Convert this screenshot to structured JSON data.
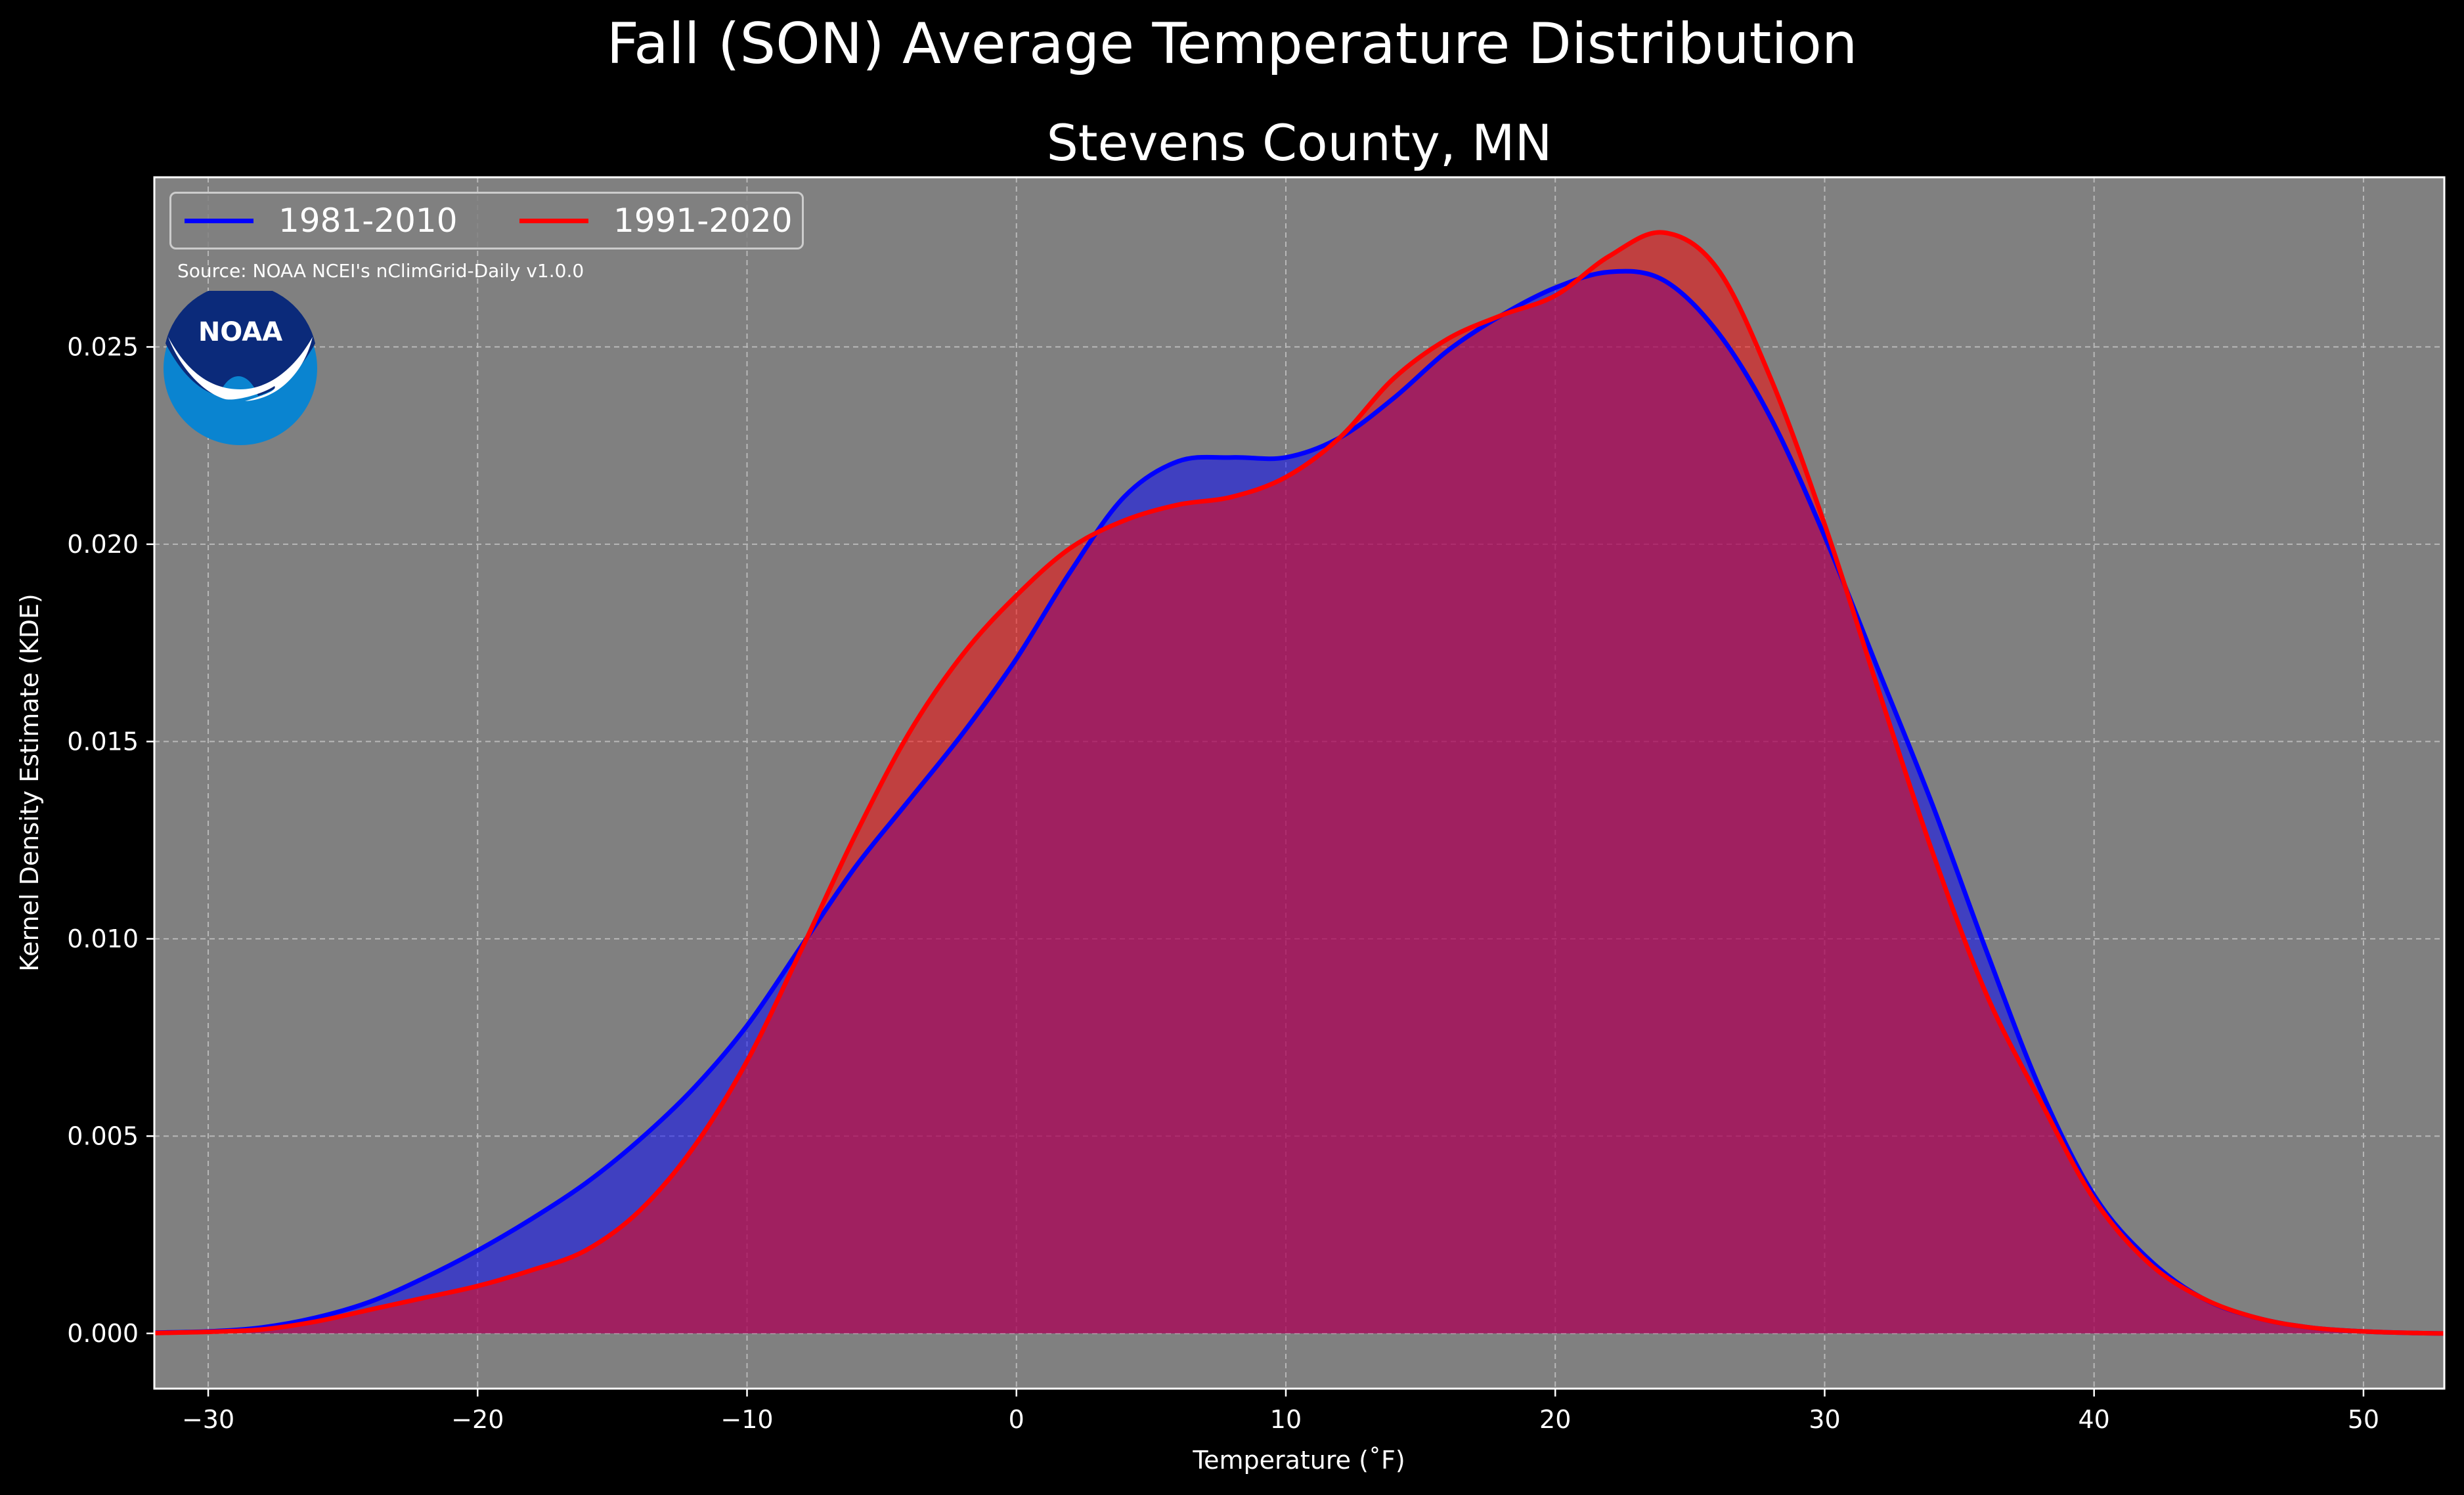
{
  "colors": {
    "figure_bg": "#000000",
    "axes_bg": "#808080",
    "series_1981": "#0000ff",
    "series_1991": "#ff0000",
    "noaa_dark": "#0b2a7a",
    "noaa_light": "#0a84d0"
  },
  "header": {
    "suptitle": "Fall (SON) Average Temperature Distribution"
  },
  "source_note": "Source: NOAA NCEI's nClimGrid-Daily v1.0.0",
  "logo": {
    "icon": "noaa-logo-icon",
    "text": "NOAA"
  },
  "chart_data": {
    "type": "area",
    "title": "Stevens County, MN",
    "xlabel": "Temperature (˚F)",
    "ylabel": "Kernel Density Estimate (KDE)",
    "xlim": [
      -32,
      53
    ],
    "ylim": [
      -0.0014,
      0.0293
    ],
    "xticks": [
      -30,
      -20,
      -10,
      0,
      10,
      20,
      30,
      40,
      50
    ],
    "xtick_labels": [
      "−30",
      "−20",
      "−10",
      "0",
      "10",
      "20",
      "30",
      "40",
      "50"
    ],
    "yticks": [
      0.0,
      0.005,
      0.01,
      0.015,
      0.02,
      0.025
    ],
    "ytick_labels": [
      "0.000",
      "0.005",
      "0.010",
      "0.015",
      "0.020",
      "0.025"
    ],
    "grid": true,
    "legend_position": "top-left",
    "series": [
      {
        "name": "1981-2010",
        "color": "#0000ff",
        "fill": "rgba(0,0,255,0.5)",
        "x": [
          -32,
          -30,
          -28,
          -26,
          -24,
          -22,
          -20,
          -18,
          -16,
          -14,
          -12,
          -10,
          -8,
          -6,
          -4,
          -2,
          0,
          2,
          4,
          6,
          8,
          10,
          12,
          14,
          16,
          18,
          20,
          22,
          24,
          26,
          28,
          30,
          32,
          34,
          36,
          38,
          40,
          42,
          44,
          46,
          48,
          50,
          52,
          53
        ],
        "y": [
          2e-05,
          5e-05,
          0.00015,
          0.0004,
          0.0008,
          0.0014,
          0.0021,
          0.0029,
          0.0038,
          0.0049,
          0.0062,
          0.0078,
          0.0098,
          0.0118,
          0.0135,
          0.0152,
          0.0171,
          0.0193,
          0.0212,
          0.0221,
          0.0222,
          0.0222,
          0.0227,
          0.0237,
          0.0249,
          0.0258,
          0.0265,
          0.0269,
          0.0267,
          0.0254,
          0.0232,
          0.0202,
          0.0168,
          0.0134,
          0.0097,
          0.0062,
          0.0035,
          0.0019,
          0.0009,
          0.0004,
          0.00015,
          5e-05,
          1e-05,
          0.0
        ]
      },
      {
        "name": "1991-2020",
        "color": "#ff0000",
        "fill": "rgba(255,0,0,0.5)",
        "x": [
          -32,
          -30,
          -28,
          -26,
          -24,
          -22,
          -20,
          -18,
          -16,
          -14,
          -12,
          -10,
          -8,
          -6,
          -4,
          -2,
          0,
          2,
          4,
          6,
          8,
          10,
          12,
          14,
          16,
          18,
          20,
          22,
          24,
          26,
          28,
          30,
          32,
          34,
          36,
          38,
          40,
          42,
          44,
          46,
          48,
          50,
          52,
          53
        ],
        "y": [
          1e-05,
          4e-05,
          0.0001,
          0.0003,
          0.0006,
          0.0009,
          0.0012,
          0.0016,
          0.0021,
          0.0031,
          0.0047,
          0.0069,
          0.0097,
          0.0126,
          0.0152,
          0.0172,
          0.0187,
          0.0199,
          0.0206,
          0.021,
          0.0212,
          0.0217,
          0.0227,
          0.0242,
          0.0252,
          0.0258,
          0.0263,
          0.0273,
          0.0279,
          0.027,
          0.0242,
          0.0205,
          0.0163,
          0.0122,
          0.0086,
          0.0059,
          0.0034,
          0.0018,
          0.0009,
          0.0004,
          0.00015,
          5e-05,
          1e-05,
          0.0
        ]
      }
    ]
  }
}
